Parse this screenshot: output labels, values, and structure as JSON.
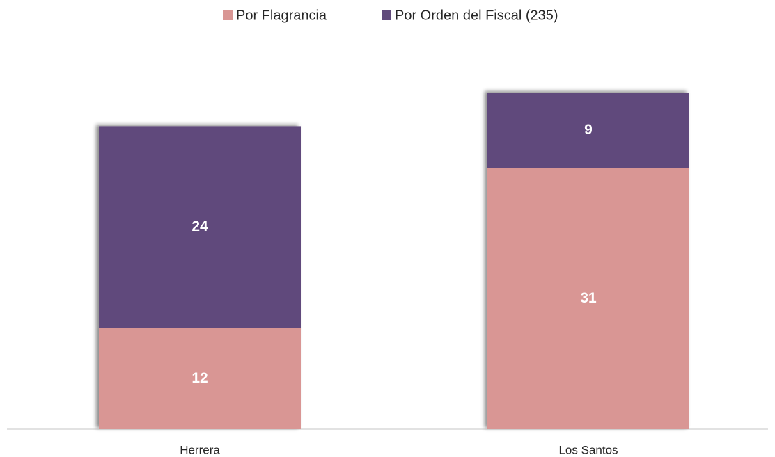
{
  "chart_data": {
    "type": "stacked_bar",
    "categories": [
      "Herrera",
      "Los Santos"
    ],
    "series": [
      {
        "name": "Por Flagrancia",
        "color": "#d99694",
        "values": [
          12,
          31
        ]
      },
      {
        "name": "Por Orden del Fiscal (235)",
        "color": "#604a7b",
        "values": [
          24,
          9
        ]
      }
    ],
    "legend": "top"
  }
}
